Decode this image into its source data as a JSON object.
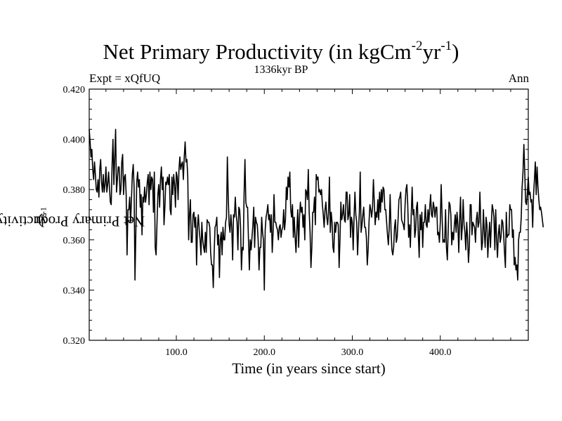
{
  "title": {
    "main": "Net Primary Productivity (in kgCm",
    "sup1": "-2",
    "mid": "yr",
    "sup2": "-1",
    "end": ")"
  },
  "subtitle": "1336kyr BP",
  "experiment_label": "Expt = xQfUQ",
  "season_label": "Ann",
  "chart_data": {
    "type": "line",
    "title": "Net Primary Productivity (in kgCm-2yr-1)",
    "subtitle": "1336kyr BP",
    "xlabel": "Time (in years since start)",
    "ylabel": {
      "main": "Net Primary Productivity (in kgCm",
      "sup1": "-2",
      "mid": "yr",
      "sup2": "-1",
      "end": ")"
    },
    "xlim": [
      1,
      500
    ],
    "ylim": [
      0.32,
      0.42
    ],
    "x_ticks": [
      100,
      200,
      300,
      400
    ],
    "x_tick_labels": [
      "100.0",
      "200.0",
      "300.0",
      "400.0"
    ],
    "y_ticks": [
      0.32,
      0.34,
      0.36,
      0.38,
      0.4,
      0.42
    ],
    "y_tick_labels": [
      "0.320",
      "0.340",
      "0.360",
      "0.380",
      "0.400",
      "0.420"
    ],
    "series": [
      {
        "name": "NPP",
        "x_start": 1,
        "x_step": 1,
        "values": [
          0.404,
          0.399,
          0.393,
          0.396,
          0.388,
          0.384,
          0.391,
          0.386,
          0.38,
          0.379,
          0.384,
          0.377,
          0.388,
          0.392,
          0.383,
          0.379,
          0.386,
          0.379,
          0.382,
          0.389,
          0.379,
          0.382,
          0.387,
          0.381,
          0.375,
          0.374,
          0.39,
          0.4,
          0.382,
          0.393,
          0.404,
          0.379,
          0.384,
          0.389,
          0.389,
          0.378,
          0.38,
          0.391,
          0.394,
          0.378,
          0.385,
          0.386,
          0.378,
          0.354,
          0.372,
          0.372,
          0.377,
          0.367,
          0.376,
          0.386,
          0.39,
          0.381,
          0.344,
          0.363,
          0.383,
          0.387,
          0.381,
          0.384,
          0.373,
          0.378,
          0.362,
          0.377,
          0.375,
          0.381,
          0.375,
          0.378,
          0.383,
          0.386,
          0.374,
          0.387,
          0.38,
          0.385,
          0.384,
          0.371,
          0.387,
          0.357,
          0.354,
          0.366,
          0.378,
          0.382,
          0.373,
          0.384,
          0.389,
          0.38,
          0.385,
          0.366,
          0.373,
          0.383,
          0.382,
          0.385,
          0.382,
          0.386,
          0.372,
          0.37,
          0.385,
          0.378,
          0.386,
          0.382,
          0.373,
          0.387,
          0.385,
          0.376,
          0.388,
          0.393,
          0.388,
          0.39,
          0.391,
          0.384,
          0.393,
          0.399,
          0.391,
          0.392,
          0.385,
          0.36,
          0.37,
          0.376,
          0.359,
          0.359,
          0.37,
          0.371,
          0.365,
          0.369,
          0.35,
          0.365,
          0.37,
          0.364,
          0.36,
          0.354,
          0.367,
          0.36,
          0.357,
          0.355,
          0.363,
          0.355,
          0.368,
          0.367,
          0.367,
          0.365,
          0.355,
          0.35,
          0.35,
          0.341,
          0.355,
          0.365,
          0.366,
          0.369,
          0.358,
          0.362,
          0.345,
          0.36,
          0.363,
          0.354,
          0.365,
          0.36,
          0.36,
          0.367,
          0.369,
          0.393,
          0.377,
          0.366,
          0.363,
          0.37,
          0.365,
          0.352,
          0.37,
          0.369,
          0.377,
          0.37,
          0.367,
          0.356,
          0.373,
          0.372,
          0.365,
          0.348,
          0.357,
          0.356,
          0.378,
          0.392,
          0.375,
          0.373,
          0.373,
          0.36,
          0.348,
          0.36,
          0.356,
          0.361,
          0.366,
          0.373,
          0.357,
          0.369,
          0.367,
          0.366,
          0.36,
          0.348,
          0.357,
          0.357,
          0.369,
          0.363,
          0.36,
          0.34,
          0.364,
          0.369,
          0.371,
          0.374,
          0.368,
          0.37,
          0.363,
          0.37,
          0.355,
          0.363,
          0.378,
          0.367,
          0.367,
          0.365,
          0.364,
          0.36,
          0.365,
          0.366,
          0.361,
          0.364,
          0.365,
          0.372,
          0.364,
          0.368,
          0.381,
          0.376,
          0.385,
          0.381,
          0.387,
          0.372,
          0.369,
          0.374,
          0.361,
          0.369,
          0.361,
          0.355,
          0.364,
          0.372,
          0.357,
          0.369,
          0.375,
          0.371,
          0.373,
          0.365,
          0.37,
          0.36,
          0.38,
          0.379,
          0.376,
          0.388,
          0.371,
          0.363,
          0.349,
          0.357,
          0.371,
          0.371,
          0.377,
          0.366,
          0.386,
          0.384,
          0.385,
          0.379,
          0.38,
          0.378,
          0.38,
          0.374,
          0.37,
          0.365,
          0.372,
          0.375,
          0.369,
          0.366,
          0.371,
          0.385,
          0.363,
          0.371,
          0.367,
          0.357,
          0.355,
          0.367,
          0.363,
          0.367,
          0.367,
          0.366,
          0.349,
          0.36,
          0.375,
          0.368,
          0.37,
          0.374,
          0.368,
          0.367,
          0.379,
          0.379,
          0.368,
          0.37,
          0.378,
          0.361,
          0.369,
          0.367,
          0.356,
          0.369,
          0.379,
          0.37,
          0.367,
          0.354,
          0.363,
          0.371,
          0.387,
          0.363,
          0.366,
          0.37,
          0.373,
          0.365,
          0.365,
          0.361,
          0.35,
          0.356,
          0.367,
          0.374,
          0.372,
          0.369,
          0.373,
          0.384,
          0.375,
          0.366,
          0.371,
          0.369,
          0.376,
          0.368,
          0.379,
          0.371,
          0.38,
          0.375,
          0.381,
          0.38,
          0.372,
          0.372,
          0.367,
          0.362,
          0.358,
          0.365,
          0.378,
          0.364,
          0.356,
          0.354,
          0.357,
          0.365,
          0.368,
          0.359,
          0.361,
          0.368,
          0.376,
          0.377,
          0.379,
          0.368,
          0.367,
          0.366,
          0.364,
          0.374,
          0.38,
          0.382,
          0.374,
          0.361,
          0.366,
          0.357,
          0.37,
          0.381,
          0.37,
          0.372,
          0.361,
          0.364,
          0.373,
          0.375,
          0.362,
          0.353,
          0.37,
          0.364,
          0.371,
          0.357,
          0.367,
          0.367,
          0.374,
          0.366,
          0.365,
          0.372,
          0.367,
          0.373,
          0.378,
          0.37,
          0.369,
          0.375,
          0.373,
          0.369,
          0.373,
          0.373,
          0.362,
          0.363,
          0.359,
          0.367,
          0.382,
          0.37,
          0.359,
          0.36,
          0.359,
          0.372,
          0.357,
          0.352,
          0.364,
          0.375,
          0.374,
          0.37,
          0.358,
          0.363,
          0.36,
          0.366,
          0.37,
          0.363,
          0.371,
          0.366,
          0.355,
          0.368,
          0.377,
          0.36,
          0.365,
          0.376,
          0.366,
          0.363,
          0.356,
          0.367,
          0.361,
          0.351,
          0.357,
          0.374,
          0.374,
          0.362,
          0.367,
          0.366,
          0.365,
          0.359,
          0.368,
          0.371,
          0.365,
          0.367,
          0.379,
          0.367,
          0.356,
          0.359,
          0.372,
          0.363,
          0.357,
          0.369,
          0.366,
          0.353,
          0.361,
          0.367,
          0.357,
          0.366,
          0.374,
          0.372,
          0.369,
          0.356,
          0.372,
          0.36,
          0.353,
          0.362,
          0.366,
          0.359,
          0.361,
          0.368,
          0.367,
          0.362,
          0.355,
          0.349,
          0.371,
          0.361,
          0.362,
          0.362,
          0.374,
          0.372,
          0.372,
          0.361,
          0.364,
          0.35,
          0.353,
          0.348,
          0.35,
          0.344,
          0.36,
          0.363,
          0.363,
          0.369,
          0.381,
          0.387,
          0.398,
          0.387,
          0.375,
          0.374,
          0.379,
          0.385,
          0.378,
          0.379,
          0.375,
          0.376,
          0.365,
          0.378,
          0.384,
          0.391,
          0.378,
          0.389,
          0.381,
          0.376,
          0.372,
          0.373,
          0.371,
          0.368,
          0.365
        ]
      }
    ]
  }
}
